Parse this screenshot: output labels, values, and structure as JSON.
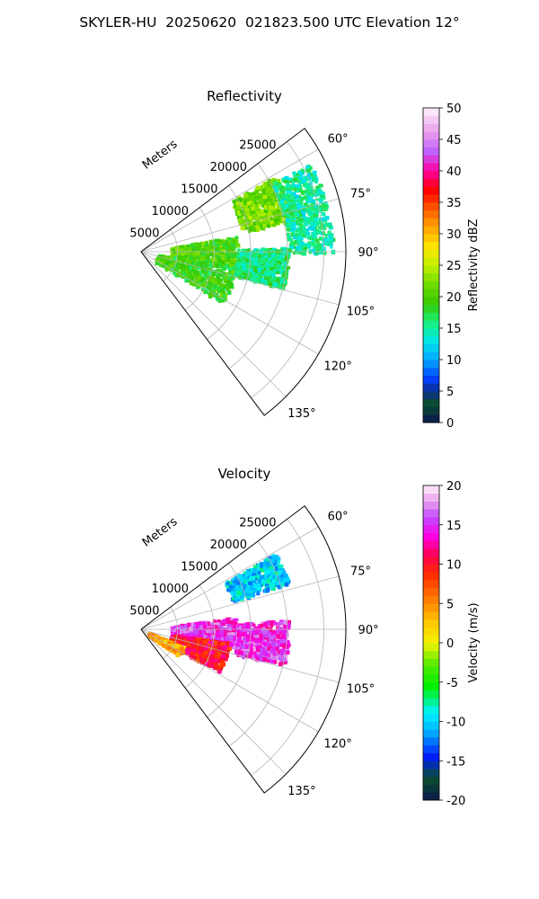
{
  "figure": {
    "title": "SKYLER-HU  20250620  021823.500 UTC Elevation 12°"
  },
  "chart_data": [
    {
      "type": "heatmap",
      "subtype": "polar-sector",
      "title": "Reflectivity",
      "range_label": "Meters",
      "range_ticks": [
        "5000",
        "10000",
        "15000",
        "20000",
        "25000"
      ],
      "range_max": 28000,
      "azimuth_ticks": [
        "60°",
        "75°",
        "90°",
        "105°",
        "120°",
        "135°"
      ],
      "azimuth_range": [
        53,
        143
      ],
      "grid": true,
      "colorbar": {
        "label": "Reflectivity dBZ",
        "min": 0,
        "max": 50,
        "ticks": [
          "0",
          "5",
          "10",
          "15",
          "20",
          "25",
          "30",
          "35",
          "40",
          "45",
          "50"
        ],
        "colormap": "pyart_HomeyerRainbow"
      },
      "echo_regions": [
        {
          "az": [
            60,
            78
          ],
          "range_km": [
            14,
            21
          ],
          "value": 22
        },
        {
          "az": [
            80,
            100
          ],
          "range_km": [
            4,
            13
          ],
          "value": 20
        },
        {
          "az": [
            98,
            122
          ],
          "range_km": [
            2,
            13
          ],
          "value": 19
        },
        {
          "az": [
            88,
            104
          ],
          "range_km": [
            13,
            20
          ],
          "value": 16
        },
        {
          "az": [
            62,
            90
          ],
          "range_km": [
            20,
            26
          ],
          "value": 15
        }
      ]
    },
    {
      "type": "heatmap",
      "subtype": "polar-sector",
      "title": "Velocity",
      "range_label": "Meters",
      "range_ticks": [
        "5000",
        "10000",
        "15000",
        "20000",
        "25000"
      ],
      "range_max": 28000,
      "azimuth_ticks": [
        "60°",
        "75°",
        "90°",
        "105°",
        "120°",
        "135°"
      ],
      "azimuth_range": [
        53,
        143
      ],
      "grid": true,
      "colorbar": {
        "label": "Velocity (m/s)",
        "min": -20,
        "max": 20,
        "ticks": [
          "-20",
          "-15",
          "-10",
          "-5",
          "0",
          "5",
          "10",
          "15",
          "20"
        ],
        "colormap": "pyart_BuDRd18"
      },
      "echo_regions": [
        {
          "az": [
            60,
            72
          ],
          "range_km": [
            13,
            21
          ],
          "value": -10
        },
        {
          "az": [
            82,
            100
          ],
          "range_km": [
            4,
            13
          ],
          "value": 15
        },
        {
          "az": [
            98,
            118
          ],
          "range_km": [
            4,
            12
          ],
          "value": 10
        },
        {
          "az": [
            112,
            124
          ],
          "range_km": [
            1,
            6
          ],
          "value": 4
        },
        {
          "az": [
            86,
            104
          ],
          "range_km": [
            13,
            20
          ],
          "value": 15
        }
      ]
    }
  ]
}
